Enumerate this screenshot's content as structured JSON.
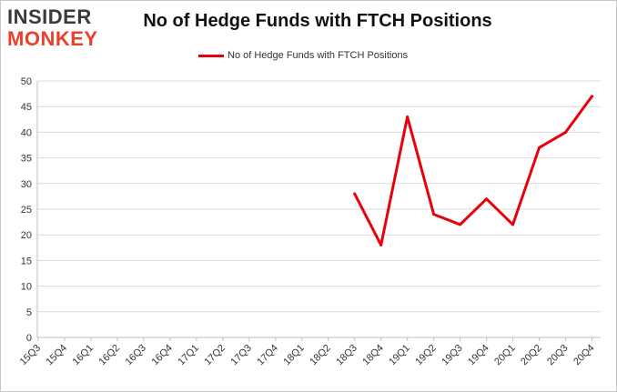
{
  "logo": {
    "line1": "INSIDER",
    "line2": "MONKEY"
  },
  "colors": {
    "series": "#e8000b",
    "grid": "#d9d9d9",
    "axis": "#bfbfbf",
    "logo_dark": "#3a3a3a",
    "logo_red": "#e8402a"
  },
  "chart_data": {
    "type": "line",
    "title": "No of Hedge Funds with FTCH Positions",
    "xlabel": "",
    "ylabel": "",
    "ylim": [
      0,
      50
    ],
    "yticks": [
      0,
      5,
      10,
      15,
      20,
      25,
      30,
      35,
      40,
      45,
      50
    ],
    "grid": true,
    "legend_position": "top-center",
    "categories": [
      "15Q3",
      "15Q4",
      "16Q1",
      "16Q2",
      "16Q3",
      "16Q4",
      "17Q1",
      "17Q2",
      "17Q3",
      "17Q4",
      "18Q1",
      "18Q2",
      "18Q3",
      "18Q4",
      "19Q1",
      "19Q2",
      "19Q3",
      "19Q4",
      "20Q1",
      "20Q2",
      "20Q3",
      "20Q4"
    ],
    "series": [
      {
        "name": "No of Hedge Funds with FTCH Positions",
        "values": [
          null,
          null,
          null,
          null,
          null,
          null,
          null,
          null,
          null,
          null,
          null,
          null,
          28,
          18,
          43,
          24,
          22,
          27,
          22,
          37,
          40,
          47
        ]
      }
    ]
  }
}
